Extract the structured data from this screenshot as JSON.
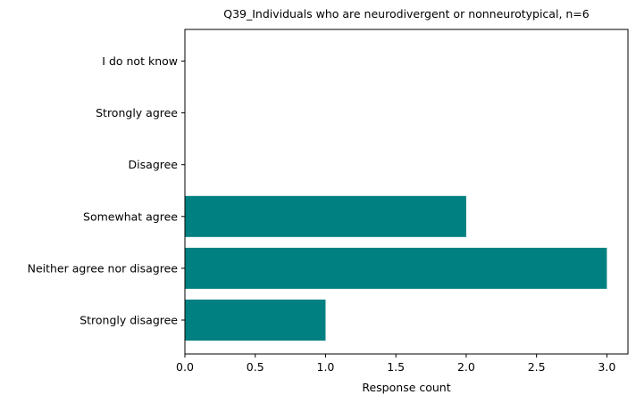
{
  "chart_data": {
    "type": "bar",
    "orientation": "horizontal",
    "title": "Q39_Individuals who are neurodivergent or nonneurotypical, n=6",
    "xlabel": "Response count",
    "ylabel": "",
    "categories": [
      "Strongly disagree",
      "Neither agree nor disagree",
      "Somewhat agree",
      "Disagree",
      "Strongly agree",
      "I do not know"
    ],
    "values": [
      1,
      3,
      2,
      0,
      0,
      0
    ],
    "xlim": [
      0,
      3.15
    ],
    "xticks": [
      0,
      0.5,
      1,
      1.5,
      2,
      2.5,
      3
    ],
    "xtick_labels": [
      "0.0",
      "0.5",
      "1.0",
      "1.5",
      "2.0",
      "2.5",
      "3.0"
    ],
    "bar_color": "#008080",
    "grid": false,
    "legend": "none"
  }
}
